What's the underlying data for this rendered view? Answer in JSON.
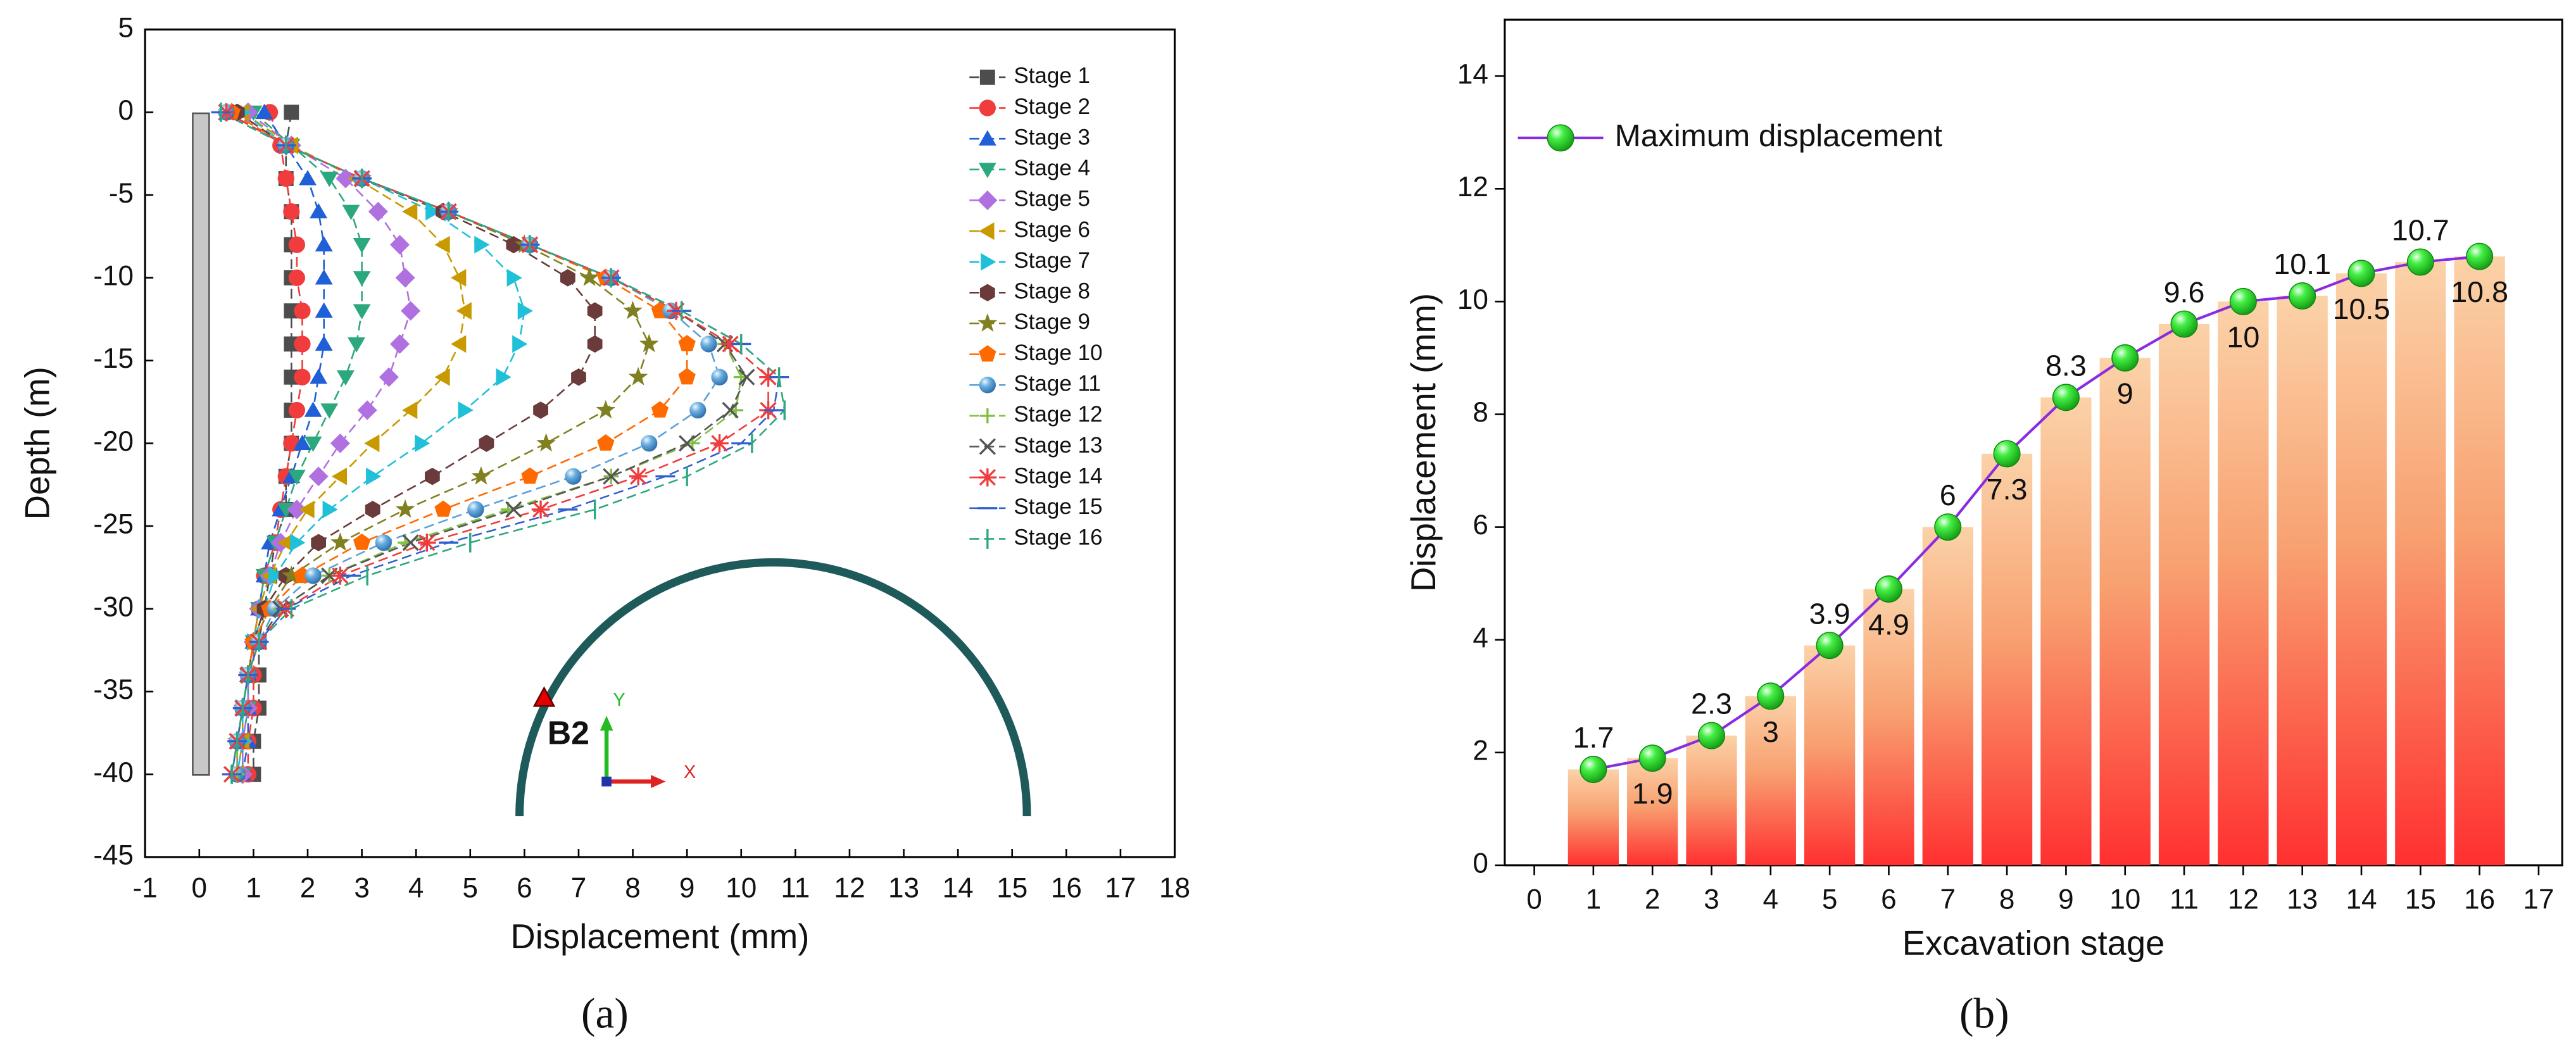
{
  "chart_data": [
    {
      "type": "scatter-line",
      "xlabel": "Displacement (mm)",
      "ylabel": "Depth (m)",
      "xlim": [
        -1,
        18
      ],
      "ylim": [
        -45,
        5
      ],
      "xticks": [
        -1,
        0,
        1,
        2,
        3,
        4,
        5,
        6,
        7,
        8,
        9,
        10,
        11,
        12,
        13,
        14,
        15,
        16,
        17,
        18
      ],
      "yticks": [
        5,
        0,
        -5,
        -10,
        -15,
        -20,
        -25,
        -30,
        -35,
        -40,
        -45
      ],
      "annotations": [
        "B2",
        "X",
        "Y"
      ],
      "caption": "(a)",
      "y": [
        0,
        -2,
        -4,
        -6,
        -8,
        -10,
        -12,
        -14,
        -16,
        -18,
        -20,
        -22,
        -24,
        -26,
        -28,
        -30,
        -32,
        -34,
        -36,
        -38,
        -40
      ],
      "series": [
        {
          "name": "Stage 1",
          "color": "#4d4d4d",
          "marker": "square",
          "x": [
            1.7,
            1.6,
            1.6,
            1.7,
            1.7,
            1.7,
            1.7,
            1.7,
            1.7,
            1.7,
            1.7,
            1.6,
            1.6,
            1.4,
            1.3,
            1.2,
            1.1,
            1.1,
            1.1,
            1.0,
            1.0
          ]
        },
        {
          "name": "Stage 2",
          "color": "#f03c3c",
          "marker": "circle",
          "x": [
            1.3,
            1.5,
            1.6,
            1.7,
            1.8,
            1.8,
            1.9,
            1.9,
            1.9,
            1.8,
            1.7,
            1.6,
            1.5,
            1.4,
            1.2,
            1.1,
            1.0,
            1.0,
            1.0,
            0.9,
            0.9
          ]
        },
        {
          "name": "Stage 3",
          "color": "#1f5fd8",
          "marker": "triangle-up",
          "x": [
            1.2,
            1.6,
            2.0,
            2.2,
            2.3,
            2.3,
            2.3,
            2.3,
            2.2,
            2.1,
            1.9,
            1.7,
            1.5,
            1.3,
            1.2,
            1.1,
            1.0,
            0.9,
            0.9,
            0.9,
            0.8
          ]
        },
        {
          "name": "Stage 4",
          "color": "#2ca87f",
          "marker": "triangle-down",
          "x": [
            1.0,
            1.7,
            2.4,
            2.8,
            3.0,
            3.0,
            3.0,
            2.9,
            2.7,
            2.4,
            2.1,
            1.8,
            1.6,
            1.4,
            1.2,
            1.1,
            1.0,
            0.9,
            0.9,
            0.8,
            0.8
          ]
        },
        {
          "name": "Stage 5",
          "color": "#b070e0",
          "marker": "diamond",
          "x": [
            0.9,
            1.7,
            2.7,
            3.3,
            3.7,
            3.8,
            3.9,
            3.7,
            3.5,
            3.1,
            2.6,
            2.2,
            1.8,
            1.5,
            1.3,
            1.1,
            1.0,
            0.9,
            0.9,
            0.8,
            0.8
          ]
        },
        {
          "name": "Stage 6",
          "color": "#c89a00",
          "marker": "triangle-left",
          "x": [
            0.8,
            1.7,
            2.9,
            3.9,
            4.5,
            4.8,
            4.9,
            4.8,
            4.5,
            3.9,
            3.2,
            2.6,
            2.0,
            1.6,
            1.3,
            1.1,
            1.0,
            0.9,
            0.8,
            0.8,
            0.7
          ]
        },
        {
          "name": "Stage 7",
          "color": "#20c0d8",
          "marker": "triangle-right",
          "x": [
            0.8,
            1.6,
            3.0,
            4.3,
            5.2,
            5.8,
            6.0,
            5.9,
            5.6,
            4.9,
            4.1,
            3.2,
            2.4,
            1.8,
            1.4,
            1.2,
            1.0,
            0.9,
            0.8,
            0.8,
            0.7
          ]
        },
        {
          "name": "Stage 8",
          "color": "#6b3a3a",
          "marker": "hexagon",
          "x": [
            0.7,
            1.6,
            3.0,
            4.5,
            5.8,
            6.8,
            7.3,
            7.3,
            7.0,
            6.3,
            5.3,
            4.3,
            3.2,
            2.2,
            1.6,
            1.2,
            1.0,
            0.9,
            0.8,
            0.7,
            0.7
          ]
        },
        {
          "name": "Stage 9",
          "color": "#808020",
          "marker": "star",
          "x": [
            0.6,
            1.6,
            3.0,
            4.6,
            6.0,
            7.2,
            8.0,
            8.3,
            8.1,
            7.5,
            6.4,
            5.2,
            3.8,
            2.6,
            1.7,
            1.3,
            1.0,
            0.9,
            0.8,
            0.7,
            0.7
          ]
        },
        {
          "name": "Stage 10",
          "color": "#ff6a00",
          "marker": "pentagon",
          "x": [
            0.6,
            1.6,
            3.0,
            4.6,
            6.1,
            7.5,
            8.5,
            9.0,
            9.0,
            8.5,
            7.5,
            6.1,
            4.5,
            3.0,
            1.9,
            1.3,
            1.0,
            0.9,
            0.8,
            0.7,
            0.7
          ]
        },
        {
          "name": "Stage 11",
          "color": "#5aa0d8",
          "marker": "sphere",
          "x": [
            0.5,
            1.6,
            3.0,
            4.6,
            6.1,
            7.6,
            8.7,
            9.4,
            9.6,
            9.2,
            8.3,
            6.9,
            5.1,
            3.4,
            2.1,
            1.4,
            1.1,
            0.9,
            0.8,
            0.7,
            0.7
          ]
        },
        {
          "name": "Stage 12",
          "color": "#80c040",
          "marker": "plus",
          "x": [
            0.5,
            1.6,
            3.0,
            4.6,
            6.1,
            7.6,
            8.8,
            9.7,
            10.0,
            9.9,
            9.1,
            7.6,
            5.7,
            3.8,
            2.4,
            1.5,
            1.1,
            0.9,
            0.8,
            0.7,
            0.7
          ]
        },
        {
          "name": "Stage 13",
          "color": "#555555",
          "marker": "cross",
          "x": [
            0.5,
            1.6,
            3.0,
            4.6,
            6.1,
            7.6,
            8.8,
            9.7,
            10.1,
            9.8,
            9.0,
            7.6,
            5.8,
            3.9,
            2.4,
            1.5,
            1.1,
            0.9,
            0.8,
            0.7,
            0.6
          ]
        },
        {
          "name": "Stage 14",
          "color": "#f03c3c",
          "marker": "asterisk",
          "x": [
            0.5,
            1.6,
            3.0,
            4.6,
            6.1,
            7.6,
            8.8,
            9.8,
            10.5,
            10.5,
            9.6,
            8.1,
            6.3,
            4.2,
            2.6,
            1.6,
            1.1,
            0.9,
            0.8,
            0.7,
            0.6
          ]
        },
        {
          "name": "Stage 15",
          "color": "#3060d0",
          "marker": "dash",
          "x": [
            0.4,
            1.6,
            3.0,
            4.6,
            6.1,
            7.6,
            8.9,
            10.0,
            10.7,
            10.6,
            10.0,
            8.6,
            6.8,
            4.6,
            2.8,
            1.6,
            1.1,
            0.9,
            0.8,
            0.7,
            0.6
          ]
        },
        {
          "name": "Stage 16",
          "color": "#2ca87f",
          "marker": "vbar",
          "x": [
            0.4,
            1.6,
            3.0,
            4.6,
            6.1,
            7.6,
            8.9,
            10.0,
            10.7,
            10.8,
            10.2,
            9.0,
            7.3,
            5.0,
            3.1,
            1.7,
            1.1,
            0.9,
            0.8,
            0.7,
            0.6
          ]
        }
      ]
    },
    {
      "type": "bar-line",
      "xlabel": "Excavation stage",
      "ylabel": "Displacement (mm)",
      "xlim": [
        -0.5,
        17.4
      ],
      "ylim": [
        0,
        15
      ],
      "xticks": [
        0,
        1,
        2,
        3,
        4,
        5,
        6,
        7,
        8,
        9,
        10,
        11,
        12,
        13,
        14,
        15,
        16,
        17
      ],
      "yticks": [
        0,
        2,
        4,
        6,
        8,
        10,
        12,
        14
      ],
      "caption": "(b)",
      "x": [
        1,
        2,
        3,
        4,
        5,
        6,
        7,
        8,
        9,
        10,
        11,
        12,
        13,
        14,
        15,
        16
      ],
      "series": [
        {
          "name": "Maximum displacement",
          "color": "#8a2be2",
          "marker_color": "#22dd22",
          "values": [
            1.7,
            1.9,
            2.3,
            3,
            3.9,
            4.9,
            6,
            7.3,
            8.3,
            9,
            9.6,
            10,
            10.1,
            10.5,
            10.7,
            10.8
          ]
        }
      ]
    }
  ]
}
